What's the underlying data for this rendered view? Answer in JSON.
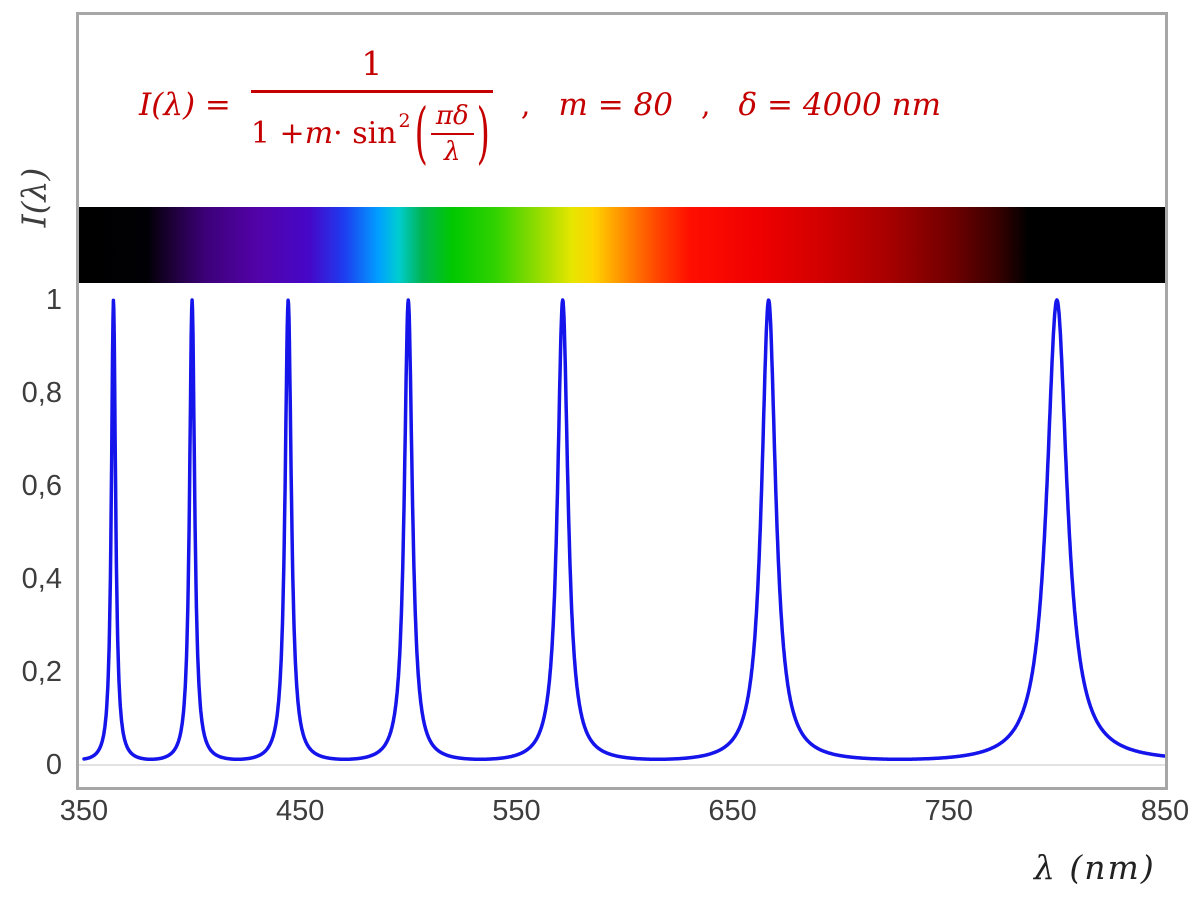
{
  "colors": {
    "formula_red": "#c40000",
    "curve_blue": "#1414eb",
    "frame_gray": "#a6a6a6",
    "tick_gray": "#3d3d3d",
    "axis_line": "#d9d9d9"
  },
  "formula": {
    "lhs": "I(λ) =",
    "numerator": "1",
    "den_1": "1 + ",
    "den_m": "m",
    "den_2": " · sin",
    "den_exp": "2",
    "paren_open": "(",
    "paren_close": ")",
    "inner_num": "πδ",
    "inner_den": "λ",
    "comma": ",",
    "m_value": "m = 80",
    "delta_value": "δ = 4000 nm"
  },
  "axis": {
    "x_title": "λ  (nm)",
    "y_title": "I(λ)"
  },
  "chart_data": {
    "type": "line",
    "title": "I(λ) = 1 / (1 + m·sin²(πδ/λ)) ,  m = 80 ,  δ = 4000 nm",
    "xlabel": "λ  (nm)",
    "ylabel": "I(λ)",
    "xlim": [
      350,
      850
    ],
    "ylim": [
      0,
      1
    ],
    "x_ticks": [
      "350",
      "450",
      "550",
      "650",
      "750",
      "850"
    ],
    "y_ticks": [
      "1",
      "0,8",
      "0,6",
      "0,4",
      "0,2",
      "0"
    ],
    "params": {
      "m": 80,
      "delta_nm": 4000
    },
    "function": "I(lambda) = 1 / (1 + m * sin(pi*delta/lambda)^2)",
    "peak_wavelengths_nm": [
      363.6,
      400.0,
      444.4,
      500.0,
      571.4,
      666.7,
      800.0
    ],
    "peak_value": 1,
    "min_value": 0.0123,
    "line_color": "#1414eb",
    "grid": false,
    "legend": false
  },
  "spectrum": {
    "start_nm": 350,
    "end_nm": 850,
    "stops": [
      {
        "nm": 350,
        "color": "#000000"
      },
      {
        "nm": 381,
        "color": "#010004"
      },
      {
        "nm": 393,
        "color": "#1e0038"
      },
      {
        "nm": 408,
        "color": "#3c0078"
      },
      {
        "nm": 432,
        "color": "#5203a8"
      },
      {
        "nm": 456,
        "color": "#4607c8"
      },
      {
        "nm": 472,
        "color": "#1e3cf0"
      },
      {
        "nm": 488,
        "color": "#00a0ff"
      },
      {
        "nm": 497,
        "color": "#00cdd2"
      },
      {
        "nm": 508,
        "color": "#00b450"
      },
      {
        "nm": 522,
        "color": "#00c800"
      },
      {
        "nm": 542,
        "color": "#32d200"
      },
      {
        "nm": 562,
        "color": "#96dc00"
      },
      {
        "nm": 577,
        "color": "#e6e600"
      },
      {
        "nm": 587,
        "color": "#ffd200"
      },
      {
        "nm": 601,
        "color": "#ff8c00"
      },
      {
        "nm": 616,
        "color": "#ff4600"
      },
      {
        "nm": 631,
        "color": "#ff0f00"
      },
      {
        "nm": 662,
        "color": "#f00000"
      },
      {
        "nm": 692,
        "color": "#d20000"
      },
      {
        "nm": 722,
        "color": "#a80000"
      },
      {
        "nm": 752,
        "color": "#700000"
      },
      {
        "nm": 773,
        "color": "#380000"
      },
      {
        "nm": 787,
        "color": "#000000"
      },
      {
        "nm": 850,
        "color": "#000000"
      }
    ]
  }
}
